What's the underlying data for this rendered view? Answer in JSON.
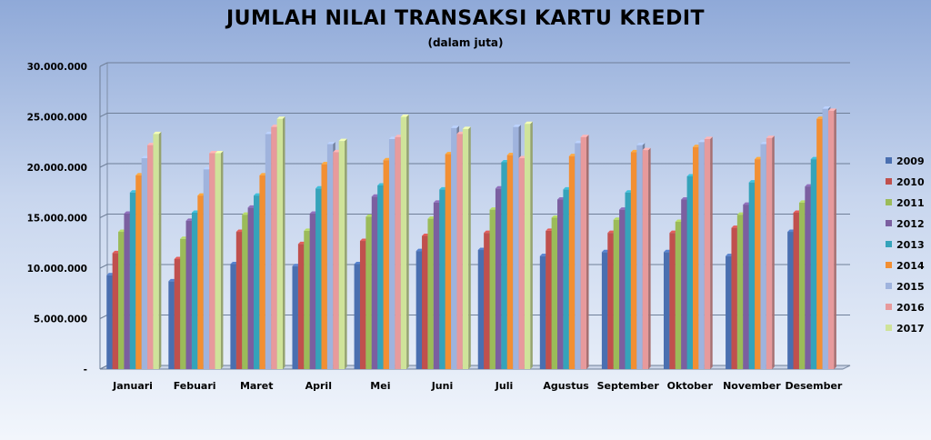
{
  "chart_data": {
    "type": "bar",
    "title": "JUMLAH NILAI TRANSAKSI KARTU KREDIT",
    "subtitle": "(dalam juta)",
    "xlabel": "",
    "ylabel": "",
    "ylim": [
      0,
      30000000
    ],
    "y_ticks": [
      0,
      5000000,
      10000000,
      15000000,
      20000000,
      25000000,
      30000000
    ],
    "y_tick_labels": [
      "-",
      "5.000.000",
      "10.000.000",
      "15.000.000",
      "20.000.000",
      "25.000.000",
      "30.000.000"
    ],
    "grid": true,
    "legend_position": "right",
    "categories": [
      "Januari",
      "Febuari",
      "Maret",
      "April",
      "Mei",
      "Juni",
      "Juli",
      "Agustus",
      "September",
      "Oktober",
      "November",
      "Desember"
    ],
    "series": [
      {
        "name": "2009",
        "color": "#4a6fb0",
        "values": [
          9300000,
          8700000,
          10400000,
          10200000,
          10400000,
          11700000,
          11800000,
          11200000,
          11600000,
          11600000,
          11200000,
          13600000
        ]
      },
      {
        "name": "2010",
        "color": "#c0504d",
        "values": [
          11500000,
          10900000,
          13600000,
          12400000,
          12700000,
          13200000,
          13500000,
          13700000,
          13500000,
          13500000,
          14000000,
          15500000
        ]
      },
      {
        "name": "2011",
        "color": "#9bbb59",
        "values": [
          13600000,
          12900000,
          15300000,
          13700000,
          15100000,
          14900000,
          15800000,
          15000000,
          14800000,
          14600000,
          15300000,
          16500000
        ]
      },
      {
        "name": "2012",
        "color": "#7b5fa0",
        "values": [
          15400000,
          14700000,
          16000000,
          15400000,
          17100000,
          16500000,
          17900000,
          16800000,
          15800000,
          16800000,
          16300000,
          18100000
        ]
      },
      {
        "name": "2013",
        "color": "#35a3ba",
        "values": [
          17500000,
          15500000,
          17200000,
          17900000,
          18200000,
          17800000,
          20500000,
          17800000,
          17500000,
          19100000,
          18500000,
          20800000
        ]
      },
      {
        "name": "2014",
        "color": "#f28f33",
        "values": [
          19200000,
          17200000,
          19200000,
          20300000,
          20700000,
          21300000,
          21200000,
          21100000,
          21500000,
          22000000,
          20800000,
          24800000
        ]
      },
      {
        "name": "2015",
        "color": "#9fb3dd",
        "values": [
          20900000,
          19800000,
          23300000,
          22300000,
          22800000,
          23900000,
          24000000,
          22400000,
          22200000,
          22500000,
          22300000,
          25800000
        ]
      },
      {
        "name": "2016",
        "color": "#e79a9c",
        "values": [
          22200000,
          21400000,
          24000000,
          21500000,
          23000000,
          23300000,
          20900000,
          23000000,
          21700000,
          22800000,
          22900000,
          25600000
        ]
      },
      {
        "name": "2017",
        "color": "#cfe39a",
        "values": [
          23300000,
          21400000,
          24800000,
          22600000,
          25000000,
          23800000,
          24300000,
          null,
          null,
          null,
          null,
          null
        ]
      }
    ]
  }
}
